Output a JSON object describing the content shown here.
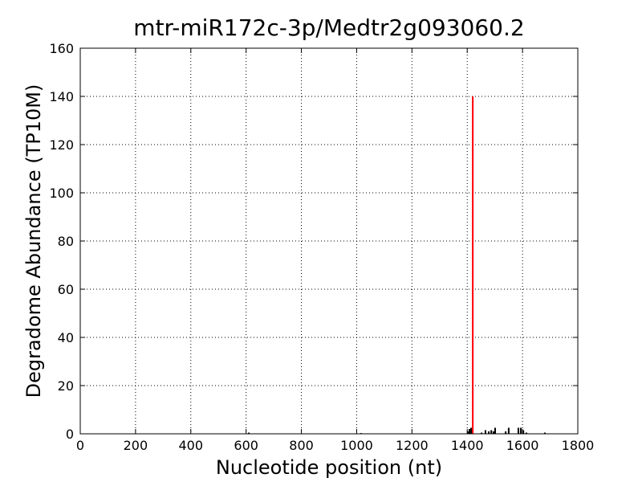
{
  "chart_data": {
    "type": "stem",
    "title": "mtr-miR172c-3p/Medtr2g093060.2",
    "x_label": "Nucleotide position (nt)",
    "y_label": "Degradome Abundance (TP10M)",
    "xlim": [
      0,
      1800
    ],
    "ylim": [
      0,
      160
    ],
    "xticks": [
      0,
      200,
      400,
      600,
      800,
      1000,
      1200,
      1400,
      1600,
      1800
    ],
    "yticks": [
      0,
      20,
      40,
      60,
      80,
      100,
      120,
      140,
      160
    ],
    "grid": true,
    "series": [
      {
        "color": "#000000",
        "x": [
          610,
          1016,
          1402,
          1408,
          1414,
          1452,
          1466,
          1478,
          1487,
          1495,
          1501,
          1539,
          1550,
          1585,
          1594,
          1603,
          1614,
          1681
        ],
        "values": [
          0.5,
          0.3,
          1,
          2,
          2.5,
          0.5,
          1.5,
          1,
          1.5,
          1,
          2.5,
          1,
          2.5,
          2.5,
          2.5,
          1.5,
          0.5,
          0.5
        ]
      },
      {
        "color": "#ff0000",
        "x": [
          1420
        ],
        "values": [
          140
        ]
      }
    ]
  }
}
